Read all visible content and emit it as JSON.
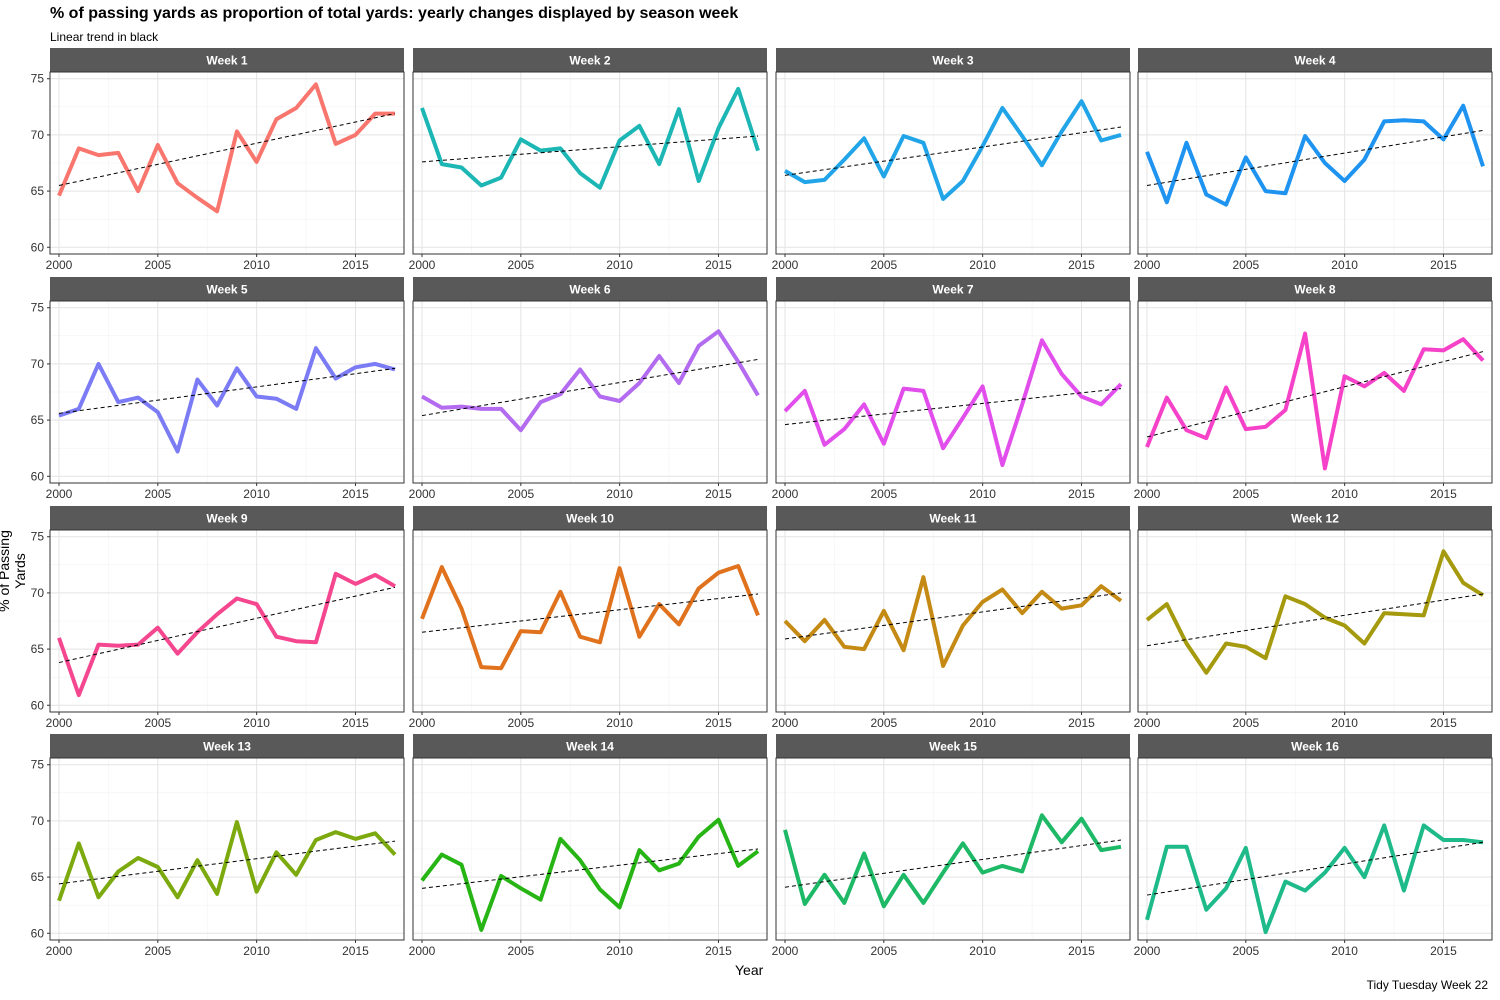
{
  "title": "% of passing yards as proportion of total yards: yearly changes displayed by season week",
  "subtitle": "Linear trend in black",
  "caption": "Tidy Tuesday Week 22",
  "chart_data": {
    "type": "line",
    "facet_layout": "4 columns x 4 rows",
    "xlabel": "Year",
    "ylabel": "% of Passing Yards",
    "xlim": [
      2000,
      2017
    ],
    "ylim": [
      60,
      75
    ],
    "x_ticks": [
      2000,
      2005,
      2010,
      2015
    ],
    "y_ticks": [
      60,
      65,
      70,
      75
    ],
    "grid": true,
    "trend_line": "linear, black dashed",
    "x": [
      2000,
      2001,
      2002,
      2003,
      2004,
      2005,
      2006,
      2007,
      2008,
      2009,
      2010,
      2011,
      2012,
      2013,
      2014,
      2015,
      2016,
      2017
    ],
    "panels": [
      {
        "name": "Week 1",
        "color": "#F8766D",
        "values": [
          64.6,
          68.8,
          68.2,
          68.4,
          65.0,
          69.1,
          65.7,
          64.4,
          63.2,
          70.3,
          67.6,
          71.4,
          72.4,
          74.5,
          69.2,
          70.0,
          71.9,
          71.9
        ],
        "trend": [
          65.5,
          71.9
        ]
      },
      {
        "name": "Week 2",
        "color": "#1CB7B5",
        "values": [
          72.4,
          67.4,
          67.1,
          65.5,
          66.2,
          69.6,
          68.6,
          68.8,
          66.6,
          65.3,
          69.5,
          70.8,
          67.4,
          72.3,
          65.9,
          70.6,
          74.1,
          68.6
        ],
        "trend": [
          67.6,
          69.9
        ]
      },
      {
        "name": "Week 3",
        "color": "#21A5E8",
        "values": [
          66.8,
          65.8,
          66.0,
          67.8,
          69.7,
          66.3,
          69.9,
          69.3,
          64.3,
          65.9,
          69.0,
          72.4,
          69.9,
          67.3,
          70.3,
          73.0,
          69.5,
          70.0
        ],
        "trend": [
          66.4,
          70.7
        ]
      },
      {
        "name": "Week 4",
        "color": "#1E93F0",
        "values": [
          68.5,
          64.0,
          69.3,
          64.7,
          63.8,
          68.0,
          65.0,
          64.8,
          69.9,
          67.5,
          65.9,
          67.8,
          71.2,
          71.3,
          71.2,
          69.6,
          72.6,
          67.2
        ],
        "trend": [
          65.5,
          70.4
        ]
      },
      {
        "name": "Week 5",
        "color": "#7B7BF5",
        "values": [
          65.4,
          66.0,
          70.0,
          66.6,
          67.0,
          65.7,
          62.2,
          68.6,
          66.3,
          69.6,
          67.1,
          66.9,
          66.0,
          71.4,
          68.7,
          69.7,
          70.0,
          69.5
        ],
        "trend": [
          65.6,
          69.6
        ]
      },
      {
        "name": "Week 6",
        "color": "#B36BF0",
        "values": [
          67.1,
          66.1,
          66.2,
          66.0,
          66.0,
          64.1,
          66.6,
          67.3,
          69.5,
          67.1,
          66.7,
          68.3,
          70.7,
          68.3,
          71.6,
          72.9,
          70.2,
          67.2
        ],
        "trend": [
          65.4,
          70.4
        ]
      },
      {
        "name": "Week 7",
        "color": "#E14EEC",
        "values": [
          65.8,
          67.6,
          62.8,
          64.2,
          66.4,
          62.9,
          67.8,
          67.6,
          62.5,
          65.2,
          68.0,
          61.0,
          66.4,
          72.1,
          69.1,
          67.1,
          66.4,
          68.2
        ],
        "trend": [
          64.6,
          67.8
        ]
      },
      {
        "name": "Week 8",
        "color": "#F542C9",
        "values": [
          62.6,
          67.0,
          64.1,
          63.4,
          67.9,
          64.2,
          64.4,
          65.9,
          72.7,
          60.7,
          68.9,
          68.0,
          69.2,
          67.6,
          71.3,
          71.2,
          72.2,
          70.3
        ],
        "trend": [
          63.5,
          71.1
        ]
      },
      {
        "name": "Week 9",
        "color": "#F5478F",
        "values": [
          66.0,
          60.9,
          65.4,
          65.3,
          65.4,
          66.9,
          64.6,
          66.5,
          68.1,
          69.5,
          69.0,
          66.1,
          65.7,
          65.6,
          71.7,
          70.8,
          71.6,
          70.6
        ],
        "trend": [
          63.8,
          70.5
        ]
      },
      {
        "name": "Week 10",
        "color": "#E0721E",
        "values": [
          67.7,
          72.3,
          68.6,
          63.4,
          63.3,
          66.6,
          66.5,
          70.1,
          66.1,
          65.6,
          72.2,
          66.1,
          69.0,
          67.2,
          70.4,
          71.8,
          72.4,
          68.0
        ],
        "trend": [
          66.5,
          69.9
        ]
      },
      {
        "name": "Week 11",
        "color": "#C48A14",
        "values": [
          67.5,
          65.7,
          67.6,
          65.2,
          65.0,
          68.4,
          64.9,
          71.4,
          63.5,
          67.1,
          69.2,
          70.3,
          68.2,
          70.1,
          68.6,
          68.9,
          70.6,
          69.3
        ],
        "trend": [
          65.9,
          70.0
        ]
      },
      {
        "name": "Week 12",
        "color": "#A59A0E",
        "values": [
          67.6,
          69.0,
          65.5,
          62.9,
          65.5,
          65.2,
          64.2,
          69.7,
          69.0,
          67.8,
          67.1,
          65.5,
          68.2,
          68.1,
          68.0,
          73.7,
          70.9,
          69.8
        ],
        "trend": [
          65.3,
          69.9
        ]
      },
      {
        "name": "Week 13",
        "color": "#7CAA0E",
        "values": [
          62.9,
          68.0,
          63.2,
          65.5,
          66.7,
          65.9,
          63.2,
          66.5,
          63.5,
          69.9,
          63.7,
          67.2,
          65.2,
          68.3,
          69.0,
          68.4,
          68.9,
          67.0
        ],
        "trend": [
          64.4,
          68.2
        ]
      },
      {
        "name": "Week 14",
        "color": "#26B514",
        "values": [
          64.7,
          67.0,
          66.1,
          60.3,
          65.1,
          64.0,
          63.0,
          68.4,
          66.5,
          63.9,
          62.3,
          67.4,
          65.6,
          66.2,
          68.6,
          70.1,
          66.0,
          67.3
        ],
        "trend": [
          64.0,
          67.5
        ]
      },
      {
        "name": "Week 15",
        "color": "#1DB966",
        "values": [
          69.2,
          62.6,
          65.2,
          62.7,
          67.1,
          62.4,
          65.2,
          62.7,
          65.4,
          68.0,
          65.4,
          66.0,
          65.5,
          70.5,
          68.1,
          70.2,
          67.4,
          67.7
        ],
        "trend": [
          64.1,
          68.3
        ]
      },
      {
        "name": "Week 16",
        "color": "#1EBA8A",
        "values": [
          61.2,
          67.7,
          67.7,
          62.1,
          64.0,
          67.6,
          60.1,
          64.6,
          63.8,
          65.4,
          67.6,
          65.0,
          69.6,
          63.8,
          69.6,
          68.3,
          68.3,
          68.1
        ],
        "trend": [
          63.4,
          68.1
        ]
      }
    ]
  }
}
